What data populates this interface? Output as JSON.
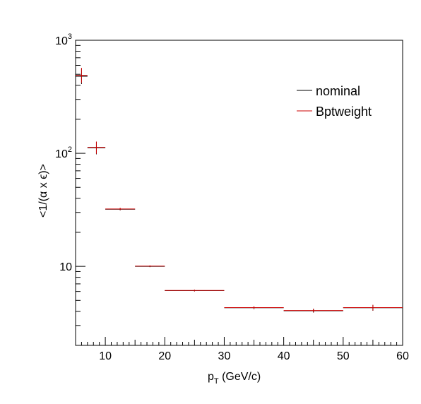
{
  "chart_data": {
    "type": "scatter",
    "xlabel_main": "p",
    "xlabel_sub": "T",
    "xlabel_rest": " (GeV/c)",
    "ylabel": "<1/(α x ϵ)>",
    "xlim": [
      5,
      60
    ],
    "ylim": [
      2,
      1000
    ],
    "yscale": "log",
    "grid": false,
    "legend_placement": "top-right",
    "x_ticks": [
      {
        "value": 10,
        "label": "10"
      },
      {
        "value": 20,
        "label": "20"
      },
      {
        "value": 30,
        "label": "30"
      },
      {
        "value": 40,
        "label": "40"
      },
      {
        "value": 50,
        "label": "50"
      },
      {
        "value": 60,
        "label": "60"
      }
    ],
    "y_ticks": [
      {
        "value": 10,
        "label": "10"
      },
      {
        "value": 100,
        "label": "10",
        "exp": "2"
      },
      {
        "value": 1000,
        "label": "10",
        "exp": "3"
      }
    ],
    "series": [
      {
        "name": "nominal",
        "color": "#000000",
        "points": [
          {
            "x": 6,
            "xlo": 5,
            "xhi": 7,
            "y": 480,
            "ylo": 410,
            "yhi": 560
          },
          {
            "x": 8.5,
            "xlo": 7,
            "xhi": 10,
            "y": 112,
            "ylo": 98,
            "yhi": 126
          },
          {
            "x": 12.5,
            "xlo": 10,
            "xhi": 15,
            "y": 32,
            "ylo": 31.3,
            "yhi": 32.7
          },
          {
            "x": 17.5,
            "xlo": 15,
            "xhi": 20,
            "y": 10,
            "ylo": 9.85,
            "yhi": 10.15
          },
          {
            "x": 25,
            "xlo": 20,
            "xhi": 30,
            "y": 6.1,
            "ylo": 6.0,
            "yhi": 6.2
          },
          {
            "x": 35,
            "xlo": 30,
            "xhi": 40,
            "y": 4.3,
            "ylo": 4.18,
            "yhi": 4.42
          },
          {
            "x": 45,
            "xlo": 40,
            "xhi": 50,
            "y": 4.05,
            "ylo": 3.9,
            "yhi": 4.2
          },
          {
            "x": 55,
            "xlo": 50,
            "xhi": 60,
            "y": 4.3,
            "ylo": 4.05,
            "yhi": 4.55
          }
        ]
      },
      {
        "name": "Bptweight",
        "color": "#cc0000",
        "points": [
          {
            "x": 6,
            "xlo": 5,
            "xhi": 7,
            "y": 490,
            "ylo": 420,
            "yhi": 570
          },
          {
            "x": 8.5,
            "xlo": 7,
            "xhi": 10,
            "y": 113,
            "ylo": 99,
            "yhi": 127
          },
          {
            "x": 12.5,
            "xlo": 10,
            "xhi": 15,
            "y": 32.2,
            "ylo": 31.5,
            "yhi": 32.9
          },
          {
            "x": 17.5,
            "xlo": 15,
            "xhi": 20,
            "y": 10.05,
            "ylo": 9.9,
            "yhi": 10.2
          },
          {
            "x": 25,
            "xlo": 20,
            "xhi": 30,
            "y": 6.12,
            "ylo": 6.02,
            "yhi": 6.22
          },
          {
            "x": 35,
            "xlo": 30,
            "xhi": 40,
            "y": 4.32,
            "ylo": 4.2,
            "yhi": 4.44
          },
          {
            "x": 45,
            "xlo": 40,
            "xhi": 50,
            "y": 4.07,
            "ylo": 3.92,
            "yhi": 4.22
          },
          {
            "x": 55,
            "xlo": 50,
            "xhi": 60,
            "y": 4.32,
            "ylo": 4.07,
            "yhi": 4.57
          }
        ]
      }
    ]
  }
}
